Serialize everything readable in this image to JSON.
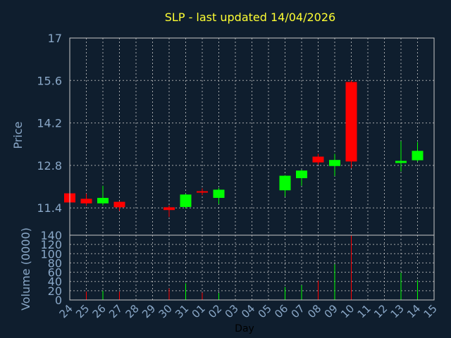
{
  "chart_data": {
    "title": "SLP - last updated 14/04/2026",
    "xlabel": "Day",
    "x_ticks": [
      "24",
      "25",
      "26",
      "27",
      "28",
      "29",
      "30",
      "31",
      "01",
      "02",
      "03",
      "04",
      "05",
      "06",
      "07",
      "08",
      "09",
      "10",
      "11",
      "12",
      "13",
      "14",
      "15"
    ],
    "price_panel": {
      "type": "candlestick",
      "ylabel": "Price",
      "ylim": [
        10.5,
        17
      ],
      "y_ticks": [
        "11.4",
        "12.8",
        "14.2",
        "15.6",
        "17"
      ],
      "up_color": "#00ff00",
      "down_color": "#ff0000",
      "candles": [
        {
          "day": "24",
          "open": 11.88,
          "high": 11.88,
          "low": 11.58,
          "close": 11.58
        },
        {
          "day": "25",
          "open": 11.7,
          "high": 11.87,
          "low": 11.47,
          "close": 11.55
        },
        {
          "day": "26",
          "open": 11.55,
          "high": 12.13,
          "low": 11.48,
          "close": 11.73
        },
        {
          "day": "27",
          "open": 11.6,
          "high": 11.62,
          "low": 11.3,
          "close": 11.42
        },
        {
          "day": "30",
          "open": 11.42,
          "high": 11.48,
          "low": 11.1,
          "close": 11.33
        },
        {
          "day": "31",
          "open": 11.43,
          "high": 11.87,
          "low": 11.38,
          "close": 11.84
        },
        {
          "day": "01",
          "open": 11.95,
          "high": 12.04,
          "low": 11.82,
          "close": 11.92
        },
        {
          "day": "02",
          "open": 11.73,
          "high": 12.06,
          "low": 11.53,
          "close": 12.0
        },
        {
          "day": "06",
          "open": 11.98,
          "high": 12.48,
          "low": 11.77,
          "close": 12.46
        },
        {
          "day": "07",
          "open": 12.38,
          "high": 12.66,
          "low": 12.13,
          "close": 12.63
        },
        {
          "day": "08",
          "open": 13.09,
          "high": 13.18,
          "low": 12.82,
          "close": 12.9
        },
        {
          "day": "09",
          "open": 12.78,
          "high": 13.18,
          "low": 12.45,
          "close": 12.98
        },
        {
          "day": "10",
          "open": 15.55,
          "high": 15.6,
          "low": 12.71,
          "close": 12.93
        },
        {
          "day": "13",
          "open": 12.88,
          "high": 13.6,
          "low": 12.6,
          "close": 12.95
        },
        {
          "day": "14",
          "open": 12.97,
          "high": 13.57,
          "low": 12.93,
          "close": 13.28
        }
      ]
    },
    "volume_panel": {
      "type": "bar",
      "ylabel": "Volume (0000)",
      "ylim": [
        0,
        140
      ],
      "y_ticks": [
        "0",
        "20",
        "40",
        "60",
        "80",
        "100",
        "120",
        "140"
      ],
      "bars": [
        {
          "day": "24",
          "value": 0,
          "color": "#ff0000"
        },
        {
          "day": "25",
          "value": 18,
          "color": "#ff0000"
        },
        {
          "day": "26",
          "value": 20,
          "color": "#00ff00"
        },
        {
          "day": "27",
          "value": 18,
          "color": "#ff0000"
        },
        {
          "day": "30",
          "value": 25,
          "color": "#ff0000"
        },
        {
          "day": "31",
          "value": 36,
          "color": "#00ff00"
        },
        {
          "day": "01",
          "value": 16,
          "color": "#ff0000"
        },
        {
          "day": "02",
          "value": 15,
          "color": "#00ff00"
        },
        {
          "day": "06",
          "value": 28,
          "color": "#00ff00"
        },
        {
          "day": "07",
          "value": 32,
          "color": "#00ff00"
        },
        {
          "day": "08",
          "value": 42,
          "color": "#ff0000"
        },
        {
          "day": "09",
          "value": 77,
          "color": "#00ff00"
        },
        {
          "day": "10",
          "value": 140,
          "color": "#ff0000"
        },
        {
          "day": "13",
          "value": 59,
          "color": "#00ff00"
        },
        {
          "day": "14",
          "value": 43,
          "color": "#00ff00"
        }
      ]
    }
  }
}
